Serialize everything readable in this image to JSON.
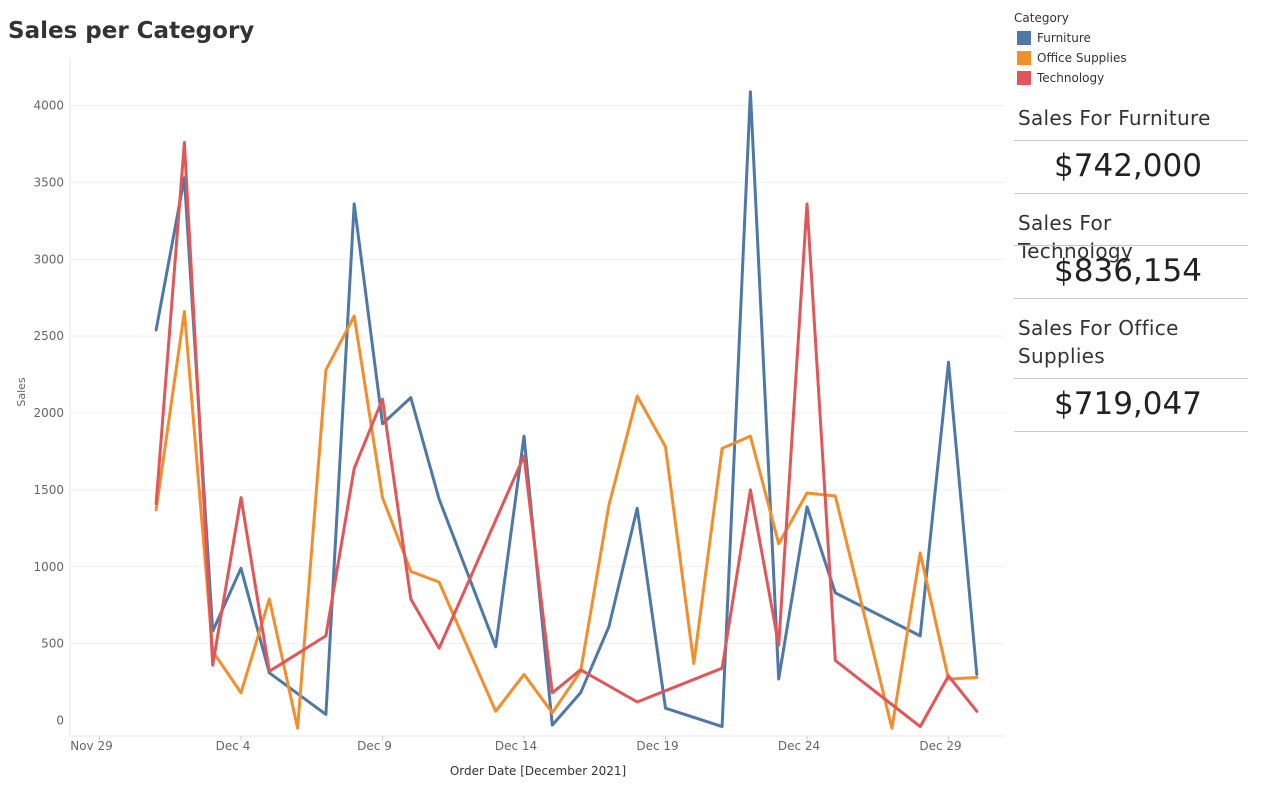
{
  "page_title": "Sales per Category",
  "legend": {
    "title": "Category",
    "items": [
      {
        "label": "Furniture",
        "color": "#4e79a7"
      },
      {
        "label": "Office Supplies",
        "color": "#f28e2b"
      },
      {
        "label": "Technology",
        "color": "#e15759"
      }
    ]
  },
  "kpis": [
    {
      "label": "Sales For Furniture",
      "value": "$742,000"
    },
    {
      "label": "Sales For Technology",
      "value": "$836,154"
    },
    {
      "label": "Sales For Office Supplies",
      "value": "$719,047"
    }
  ],
  "chart_data": {
    "type": "line",
    "title": "Sales per Category",
    "xlabel": "Order Date [December 2021]",
    "ylabel": "Sales",
    "ylim": [
      0,
      4000
    ],
    "yticks": [
      0,
      500,
      1000,
      1500,
      2000,
      2500,
      3000,
      3500,
      4000
    ],
    "xticks": [
      "Nov 29",
      "Dec 4",
      "Dec 9",
      "Dec 14",
      "Dec 19",
      "Dec 24",
      "Dec 29"
    ],
    "grid": true,
    "legend_position": "top-right",
    "series": [
      {
        "name": "Furniture",
        "color": "#4e79a7",
        "points": [
          [
            "2021-12-01",
            2540
          ],
          [
            "2021-12-02",
            3530
          ],
          [
            "2021-12-03",
            580
          ],
          [
            "2021-12-04",
            990
          ],
          [
            "2021-12-05",
            310
          ],
          [
            "2021-12-07",
            40
          ],
          [
            "2021-12-08",
            3360
          ],
          [
            "2021-12-09",
            1930
          ],
          [
            "2021-12-10",
            2100
          ],
          [
            "2021-12-11",
            1440
          ],
          [
            "2021-12-13",
            480
          ],
          [
            "2021-12-14",
            1850
          ],
          [
            "2021-12-15",
            -30
          ],
          [
            "2021-12-16",
            180
          ],
          [
            "2021-12-17",
            610
          ],
          [
            "2021-12-18",
            1380
          ],
          [
            "2021-12-19",
            80
          ],
          [
            "2021-12-21",
            -40
          ],
          [
            "2021-12-22",
            4090
          ],
          [
            "2021-12-23",
            270
          ],
          [
            "2021-12-24",
            1390
          ],
          [
            "2021-12-25",
            830
          ],
          [
            "2021-12-28",
            550
          ],
          [
            "2021-12-29",
            2330
          ],
          [
            "2021-12-30",
            300
          ]
        ]
      },
      {
        "name": "Office Supplies",
        "color": "#f28e2b",
        "points": [
          [
            "2021-12-01",
            1370
          ],
          [
            "2021-12-02",
            2660
          ],
          [
            "2021-12-03",
            450
          ],
          [
            "2021-12-04",
            180
          ],
          [
            "2021-12-05",
            790
          ],
          [
            "2021-12-06",
            -50
          ],
          [
            "2021-12-07",
            2280
          ],
          [
            "2021-12-08",
            2630
          ],
          [
            "2021-12-09",
            1450
          ],
          [
            "2021-12-10",
            970
          ],
          [
            "2021-12-11",
            900
          ],
          [
            "2021-12-13",
            60
          ],
          [
            "2021-12-14",
            300
          ],
          [
            "2021-12-15",
            50
          ],
          [
            "2021-12-16",
            320
          ],
          [
            "2021-12-17",
            1400
          ],
          [
            "2021-12-18",
            2110
          ],
          [
            "2021-12-19",
            1780
          ],
          [
            "2021-12-20",
            370
          ],
          [
            "2021-12-21",
            1770
          ],
          [
            "2021-12-22",
            1850
          ],
          [
            "2021-12-23",
            1150
          ],
          [
            "2021-12-24",
            1480
          ],
          [
            "2021-12-25",
            1460
          ],
          [
            "2021-12-27",
            -50
          ],
          [
            "2021-12-28",
            1090
          ],
          [
            "2021-12-29",
            270
          ],
          [
            "2021-12-30",
            280
          ]
        ]
      },
      {
        "name": "Technology",
        "color": "#e15759",
        "points": [
          [
            "2021-12-01",
            1410
          ],
          [
            "2021-12-02",
            3760
          ],
          [
            "2021-12-03",
            360
          ],
          [
            "2021-12-04",
            1450
          ],
          [
            "2021-12-05",
            320
          ],
          [
            "2021-12-07",
            550
          ],
          [
            "2021-12-08",
            1640
          ],
          [
            "2021-12-09",
            2090
          ],
          [
            "2021-12-10",
            790
          ],
          [
            "2021-12-11",
            470
          ],
          [
            "2021-12-14",
            1720
          ],
          [
            "2021-12-15",
            180
          ],
          [
            "2021-12-16",
            330
          ],
          [
            "2021-12-18",
            120
          ],
          [
            "2021-12-21",
            340
          ],
          [
            "2021-12-22",
            1500
          ],
          [
            "2021-12-23",
            490
          ],
          [
            "2021-12-24",
            3360
          ],
          [
            "2021-12-25",
            390
          ],
          [
            "2021-12-28",
            -40
          ],
          [
            "2021-12-29",
            290
          ],
          [
            "2021-12-30",
            60
          ]
        ]
      }
    ]
  }
}
